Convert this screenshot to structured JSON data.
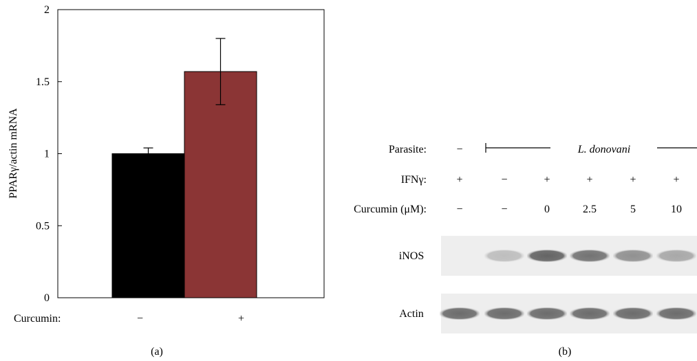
{
  "chart_data": {
    "type": "bar",
    "ylabel": "PPARγ/actin mRNA",
    "ylim": [
      0,
      2
    ],
    "yticks": [
      0,
      0.5,
      1,
      1.5,
      2
    ],
    "ytick_labels": [
      "0",
      "0.5",
      "1",
      "1.5",
      "2"
    ],
    "x_row_label": "Curcumin:",
    "categories": [
      "−",
      "+"
    ],
    "values": [
      1.0,
      1.57
    ],
    "errors": [
      0.04,
      0.23
    ],
    "colors": [
      "#000000",
      "#8b3535"
    ],
    "grid": false,
    "panel_label": "(a)"
  },
  "blot": {
    "panel_label": "(b)",
    "parasite_label": "Parasite:",
    "parasite_lane1": "−",
    "parasite_span_label": "L. donovani",
    "ifn_label": "IFNγ:",
    "ifn_values": [
      "+",
      "−",
      "+",
      "+",
      "+",
      "+"
    ],
    "curcumin_label": "Curcumin (μM):",
    "curcumin_values": [
      "−",
      "−",
      "0",
      "2.5",
      "5",
      "10"
    ],
    "bands": [
      {
        "name": "iNOS",
        "intensities": [
          0.0,
          0.3,
          0.9,
          0.8,
          0.6,
          0.45
        ]
      },
      {
        "name": "Actin",
        "intensities": [
          0.85,
          0.85,
          0.85,
          0.85,
          0.85,
          0.85
        ]
      }
    ]
  }
}
